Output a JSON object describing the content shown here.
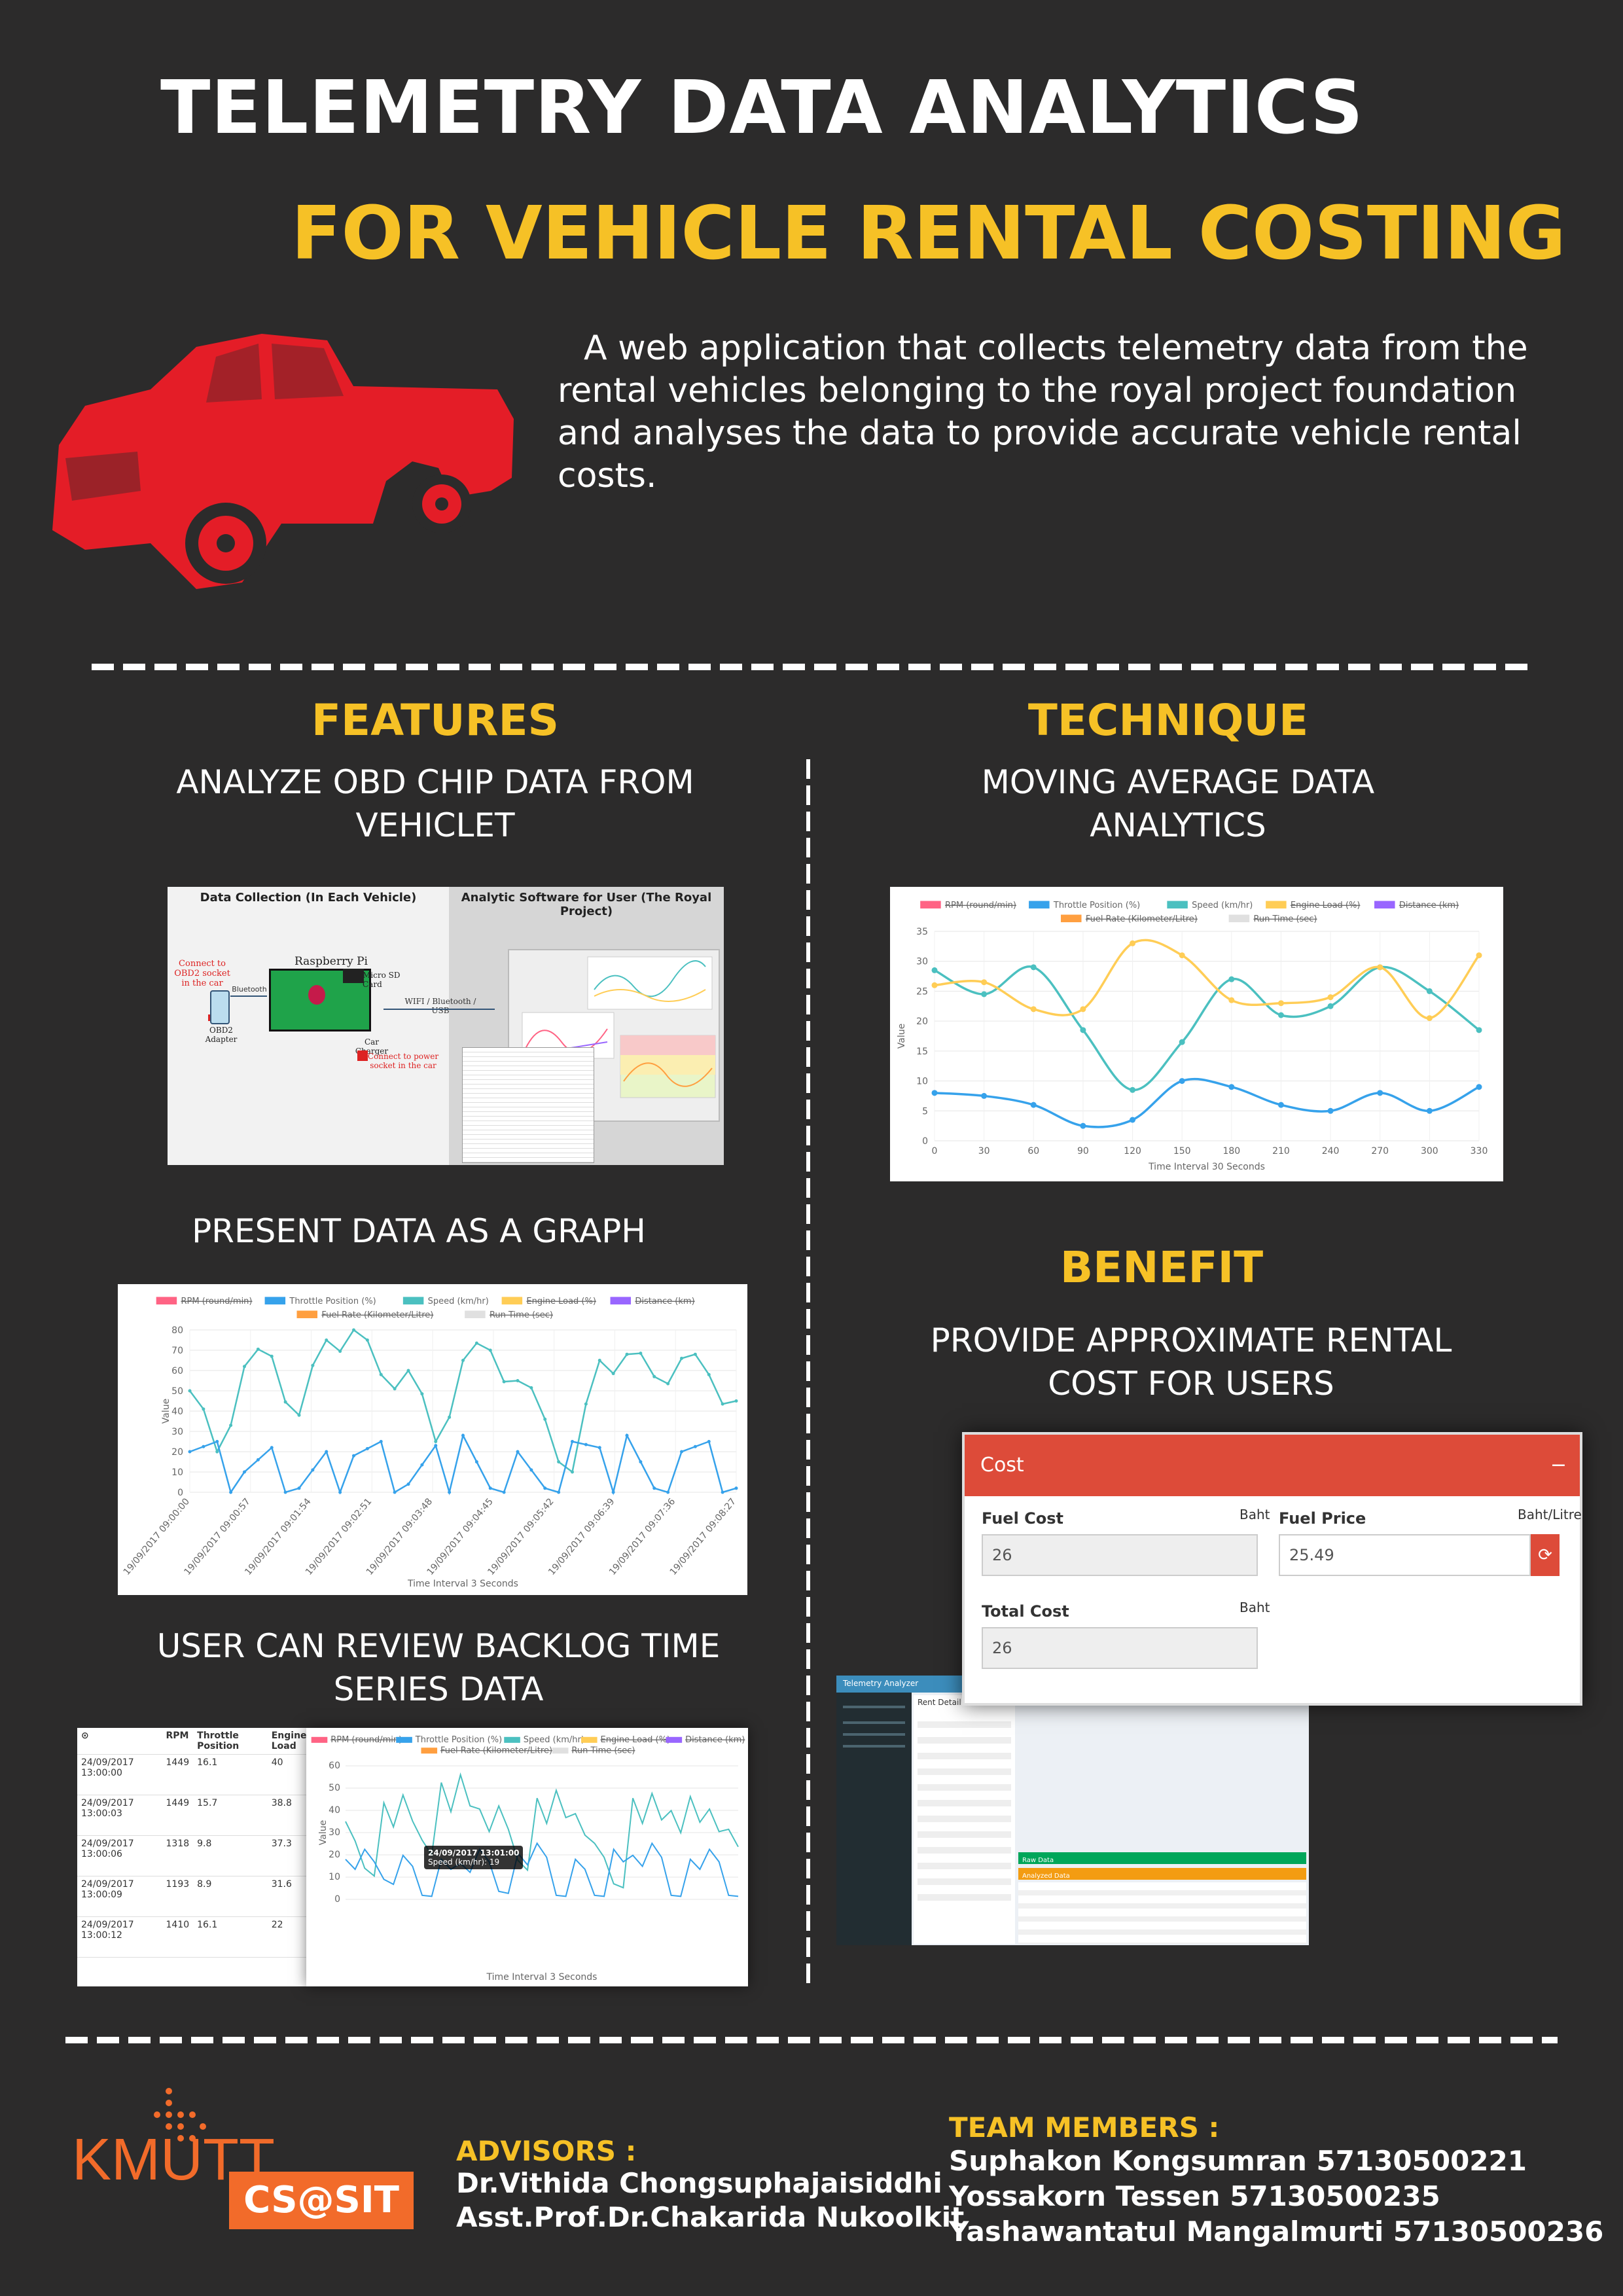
{
  "header": {
    "title": "TELEMETRY DATA ANALYTICS",
    "subtitle": "FOR VEHICLE RENTAL COSTING",
    "intro": "A web application that collects telemetry data from the rental vehicles belonging to the royal project foundation and analyses the data to provide accurate vehicle rental costs."
  },
  "features": {
    "heading": "FEATURES",
    "item1": "ANALYZE  OBD CHIP DATA FROM VEHICLET",
    "item2": "PRESENT DATA AS A GRAPH",
    "item3": "USER CAN REVIEW BACKLOG TIME SERIES DATA"
  },
  "technique": {
    "heading": "TECHNIQUE",
    "item": "MOVING AVERAGE DATA ANALYTICS"
  },
  "benefit": {
    "heading": "BENEFIT",
    "item": "PROVIDE APPROXIMATE RENTAL COST FOR USERS"
  },
  "diagram": {
    "left_title": "Data Collection (In Each Vehicle)",
    "right_title": "Analytic Software for User (The Royal Project)",
    "connect_obd": "Connect to OBD2 socket in the car",
    "bluetooth": "Bluetooth",
    "obd_adapter": "OBD2 Adapter",
    "raspberry": "Raspberry Pi",
    "sd_card": "Micro SD Card",
    "car_charger": "Car Charger",
    "connect_power": "Connect to power socket in the car",
    "link": "WIFI / Bluetooth / USB"
  },
  "legend_items": [
    "RPM (round/min)",
    "Throttle Position (%)",
    "Speed (km/hr)",
    "Engine Load (%)",
    "Distance (km)",
    "Fuel Rate (Kilometer/Litre)",
    "Run Time (sec)"
  ],
  "colors": {
    "rpm": "#ff6384",
    "throttle": "#36a2eb",
    "speed": "#4bc0c0",
    "engine": "#ffcd56",
    "distance": "#9966ff",
    "fuel": "#ff9f40",
    "runtime": "#e0e0e0"
  },
  "technique_chart": {
    "ylabel": "Value",
    "xlabel": "Time Interval 30 Seconds"
  },
  "graph_chart": {
    "ylabel": "Value",
    "xlabel": "Time Interval 3 Seconds",
    "x_ticks": [
      "19/09/2017 09:00:00",
      "19/09/2017 09:00:57",
      "19/09/2017 09:01:54",
      "19/09/2017 09:02:51",
      "19/09/2017 09:03:48",
      "19/09/2017 09:04:45",
      "19/09/2017 09:05:42",
      "19/09/2017 09:06:39",
      "19/09/2017 09:07:36",
      "19/09/2017 09:08:27"
    ]
  },
  "backlog": {
    "columns": [
      "RPM",
      "Throttle Position",
      "Engine Load"
    ],
    "rows": [
      {
        "date": "24/09/2017 13:00:00",
        "rpm": "1449",
        "tp": "16.1",
        "el": "40"
      },
      {
        "date": "24/09/2017 13:00:03",
        "rpm": "1449",
        "tp": "15.7",
        "el": "38.8"
      },
      {
        "date": "24/09/2017 13:00:06",
        "rpm": "1318",
        "tp": "9.8",
        "el": "37.3"
      },
      {
        "date": "24/09/2017 13:00:09",
        "rpm": "1193",
        "tp": "8.9",
        "el": "31.6"
      },
      {
        "date": "24/09/2017 13:00:12",
        "rpm": "1410",
        "tp": "16.1",
        "el": "22"
      }
    ],
    "chart_xlabel": "Time Interval 3 Seconds",
    "chart_ylabel": "Value",
    "tooltip_time": "24/09/2017 13:01:00",
    "tooltip_value": "Speed (km/hr): 19"
  },
  "cost": {
    "title": "Cost",
    "fuel_cost_label": "Fuel Cost",
    "fuel_cost_unit": "Baht",
    "fuel_cost_value": "26",
    "fuel_price_label": "Fuel Price",
    "fuel_price_unit": "Baht/Litre",
    "fuel_price_value": "25.49",
    "total_cost_label": "Total Cost",
    "total_cost_unit": "Baht",
    "total_cost_value": "26"
  },
  "app": {
    "brand": "Telemetry Analyzer",
    "panel_title": "Rent Detail",
    "raw_data": "Raw Data",
    "analyzed_data": "Analyzed Data"
  },
  "footer": {
    "university": "KMUTT",
    "logo_text": "CS@SIT",
    "advisors_label": "ADVISORS :",
    "advisor1": "Dr.Vithida Chongsuphajaisiddhi",
    "advisor2": "Asst.Prof.Dr.Chakarida Nukoolkit",
    "members_label": "TEAM MEMBERS :",
    "member1": "Suphakon Kongsumran 57130500221",
    "member2": "Yossakorn Tessen 57130500235",
    "member3": "Yashawantatul Mangalmurti 57130500236"
  },
  "chart_data": [
    {
      "type": "line",
      "x": [
        0,
        30,
        60,
        90,
        120,
        150,
        180,
        210,
        240,
        270,
        300,
        330
      ],
      "series": [
        {
          "name": "Speed (km/hr)",
          "values": [
            28.5,
            24.5,
            29,
            18.5,
            8.5,
            16.5,
            27,
            21,
            22.5,
            29,
            25,
            18.5
          ]
        },
        {
          "name": "Engine Load (%)",
          "values": [
            26,
            26.5,
            22,
            22,
            33,
            31,
            23.5,
            23,
            24,
            29,
            20.5,
            31
          ]
        },
        {
          "name": "Throttle Position (%)",
          "values": [
            8,
            7.5,
            6,
            2.5,
            3.5,
            10,
            9,
            6,
            5,
            8,
            5,
            9
          ]
        }
      ],
      "xlabel": "Time Interval 30 Seconds",
      "ylabel": "Value",
      "xlim": [
        0,
        330
      ],
      "ylim": [
        0,
        35
      ]
    },
    {
      "type": "line",
      "series": [
        {
          "name": "Speed (km/hr)",
          "values": [
            50,
            20,
            62,
            67,
            38,
            75,
            80,
            58,
            60,
            25,
            65,
            70,
            55,
            36,
            10,
            65,
            68,
            57,
            66,
            58,
            45
          ]
        },
        {
          "name": "Throttle Position (%)",
          "values": [
            20,
            25,
            10,
            22,
            2,
            20,
            18,
            25,
            4,
            23,
            28,
            2,
            20,
            2,
            25,
            22,
            28,
            2,
            20,
            25,
            2
          ]
        }
      ],
      "xlabel": "Time Interval 3 Seconds",
      "ylabel": "Value",
      "ylim": [
        0,
        80
      ]
    }
  ]
}
